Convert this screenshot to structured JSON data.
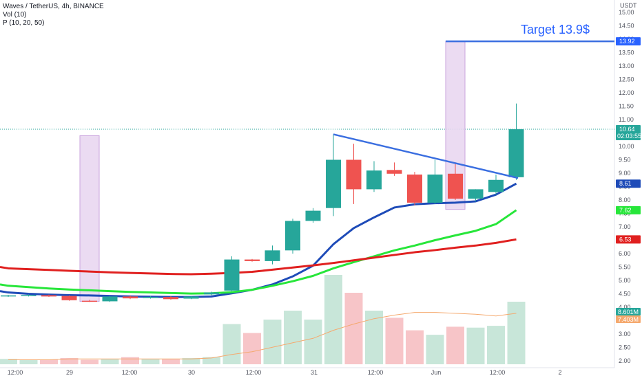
{
  "legend": {
    "symbol_line": "Waves / TetherUS, 4h, BINANCE",
    "vol_line": "Vol (10)",
    "ma_line": "P (10, 20, 50)"
  },
  "colors": {
    "up": "#26a69a",
    "down": "#ef5350",
    "vol_up": "#c8e6d9",
    "vol_down": "#f7c5c8",
    "ma10": "#1e4bb8",
    "ma20": "#27e63a",
    "ma50": "#e0201f",
    "trendline": "#3a6ee0",
    "highlight_fill": "#e8d5f0",
    "highlight_stroke": "#c9a3de",
    "vol_ma": "#f5a96e"
  },
  "chart_data": {
    "type": "candlestick",
    "currency": "USDT",
    "ylim": [
      1.9,
      15.3
    ],
    "y_ticks": [
      "15.00",
      "14.50",
      "14.00",
      "13.50",
      "13.00",
      "12.50",
      "12.00",
      "11.50",
      "11.00",
      "10.50",
      "10.00",
      "9.50",
      "9.00",
      "8.50",
      "8.00",
      "7.50",
      "7.00",
      "6.50",
      "6.00",
      "5.50",
      "5.00",
      "4.50",
      "4.00",
      "3.50",
      "3.00",
      "2.50",
      "2.00"
    ],
    "x_tick_labels": [
      "12:00",
      "29",
      "12:00",
      "30",
      "12:00",
      "31",
      "12:00",
      "Jun",
      "12:00",
      "2"
    ],
    "candles": [
      {
        "open": 4.42,
        "high": 4.46,
        "low": 4.38,
        "close": 4.44
      },
      {
        "open": 4.44,
        "high": 4.48,
        "low": 4.4,
        "close": 4.45
      },
      {
        "open": 4.45,
        "high": 4.47,
        "low": 4.38,
        "close": 4.4
      },
      {
        "open": 4.42,
        "high": 4.44,
        "low": 4.24,
        "close": 4.26
      },
      {
        "open": 4.24,
        "high": 4.28,
        "low": 4.2,
        "close": 4.22
      },
      {
        "open": 4.22,
        "high": 4.42,
        "low": 4.2,
        "close": 4.4
      },
      {
        "open": 4.4,
        "high": 4.45,
        "low": 4.3,
        "close": 4.33
      },
      {
        "open": 4.36,
        "high": 4.42,
        "low": 4.32,
        "close": 4.38
      },
      {
        "open": 4.38,
        "high": 4.42,
        "low": 4.28,
        "close": 4.3
      },
      {
        "open": 4.32,
        "high": 4.42,
        "low": 4.3,
        "close": 4.4
      },
      {
        "open": 4.48,
        "high": 4.58,
        "low": 4.45,
        "close": 4.55
      },
      {
        "open": 4.62,
        "high": 5.9,
        "low": 4.6,
        "close": 5.78
      },
      {
        "open": 5.78,
        "high": 5.8,
        "low": 5.7,
        "close": 5.72
      },
      {
        "open": 5.72,
        "high": 6.3,
        "low": 5.6,
        "close": 6.12
      },
      {
        "open": 6.12,
        "high": 7.3,
        "low": 6.0,
        "close": 7.22
      },
      {
        "open": 7.22,
        "high": 7.7,
        "low": 7.15,
        "close": 7.6
      },
      {
        "open": 7.7,
        "high": 10.45,
        "low": 7.4,
        "close": 9.5
      },
      {
        "open": 9.5,
        "high": 10.1,
        "low": 7.85,
        "close": 8.4
      },
      {
        "open": 8.4,
        "high": 9.45,
        "low": 8.3,
        "close": 9.1
      },
      {
        "open": 9.12,
        "high": 9.4,
        "low": 8.9,
        "close": 8.98
      },
      {
        "open": 8.95,
        "high": 9.05,
        "low": 7.8,
        "close": 7.9
      },
      {
        "open": 7.9,
        "high": 9.5,
        "low": 7.85,
        "close": 8.95
      },
      {
        "open": 8.98,
        "high": 9.4,
        "low": 8.0,
        "close": 8.05
      },
      {
        "open": 8.05,
        "high": 8.4,
        "low": 7.95,
        "close": 8.4
      },
      {
        "open": 8.3,
        "high": 8.95,
        "low": 8.2,
        "close": 8.75
      },
      {
        "open": 8.85,
        "high": 11.6,
        "low": 8.75,
        "close": 10.64
      }
    ],
    "volume": [
      0.06,
      0.05,
      0.05,
      0.07,
      0.05,
      0.06,
      0.08,
      0.06,
      0.06,
      0.07,
      0.08,
      0.45,
      0.35,
      0.5,
      0.6,
      0.5,
      1.0,
      0.8,
      0.6,
      0.52,
      0.38,
      0.33,
      0.42,
      0.41,
      0.43,
      0.7
    ],
    "volume_ma": [
      0.05,
      0.05,
      0.05,
      0.06,
      0.06,
      0.06,
      0.06,
      0.06,
      0.06,
      0.06,
      0.07,
      0.11,
      0.14,
      0.19,
      0.24,
      0.29,
      0.38,
      0.45,
      0.51,
      0.55,
      0.58,
      0.58,
      0.57,
      0.56,
      0.54,
      0.57
    ],
    "series": [
      {
        "name": "MA10",
        "values": [
          4.55,
          4.5,
          4.47,
          4.45,
          4.44,
          4.42,
          4.4,
          4.39,
          4.38,
          4.38,
          4.4,
          4.52,
          4.65,
          4.85,
          5.15,
          5.55,
          6.35,
          6.95,
          7.35,
          7.72,
          7.84,
          7.88,
          7.9,
          7.95,
          8.2,
          8.61
        ]
      },
      {
        "name": "MA20",
        "values": [
          4.8,
          4.75,
          4.7,
          4.66,
          4.63,
          4.6,
          4.57,
          4.55,
          4.53,
          4.51,
          4.52,
          4.56,
          4.65,
          4.8,
          4.97,
          5.17,
          5.45,
          5.68,
          5.9,
          6.12,
          6.3,
          6.5,
          6.68,
          6.85,
          7.1,
          7.62
        ]
      },
      {
        "name": "MA50",
        "values": [
          5.45,
          5.42,
          5.39,
          5.36,
          5.33,
          5.3,
          5.28,
          5.26,
          5.24,
          5.23,
          5.25,
          5.28,
          5.32,
          5.4,
          5.48,
          5.56,
          5.65,
          5.75,
          5.85,
          5.95,
          6.05,
          6.13,
          6.22,
          6.3,
          6.4,
          6.53
        ]
      }
    ],
    "price_tags": [
      {
        "value": 10.64,
        "label": "10.64",
        "sublabel": "02:03:55",
        "color": "#26a69a"
      },
      {
        "value": 8.61,
        "label": "8.61",
        "color": "#1e4bb8"
      },
      {
        "value": 7.62,
        "label": "7.62",
        "color": "#27e63a"
      },
      {
        "value": 6.53,
        "label": "6.53",
        "color": "#e0201f"
      },
      {
        "value": 13.92,
        "label": "13.92",
        "color": "#2962ff"
      }
    ],
    "volume_tags": [
      {
        "label": "8.601M",
        "color": "#26a69a"
      },
      {
        "label": "7.403M",
        "color": "#f5a96e"
      }
    ],
    "annotations": {
      "target_text": "Target 13.9$",
      "target_level": 13.92,
      "trendline": {
        "from_candle": 16,
        "from_value": 10.45,
        "to_candle": 26,
        "to_value": 8.85
      },
      "highlight_boxes": [
        {
          "candle": 4,
          "top": 10.4,
          "bottom": 4.22
        },
        {
          "candle": 22,
          "top": 13.92,
          "bottom": 7.65
        }
      ]
    }
  }
}
